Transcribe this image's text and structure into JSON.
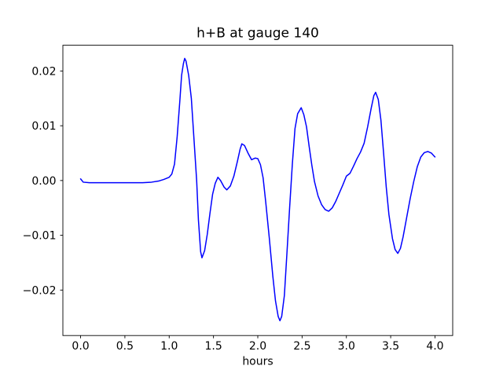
{
  "figure": {
    "background": "#ffffff"
  },
  "chart_data": {
    "type": "line",
    "title": "h+B at gauge 140",
    "xlabel": "hours",
    "ylabel": "",
    "grid": false,
    "legend": "none",
    "line_color": "#0000ff",
    "axis_color": "#000000",
    "xlim": [
      -0.2,
      4.2
    ],
    "ylim": [
      -0.0283,
      0.0247
    ],
    "xticks": {
      "values": [
        0.0,
        0.5,
        1.0,
        1.5,
        2.0,
        2.5,
        3.0,
        3.5,
        4.0
      ],
      "labels": [
        "0.0",
        "0.5",
        "1.0",
        "1.5",
        "2.0",
        "2.5",
        "3.0",
        "3.5",
        "4.0"
      ]
    },
    "yticks": {
      "values": [
        -0.02,
        -0.01,
        0.0,
        0.01,
        0.02
      ],
      "labels": [
        "−0.02",
        "−0.01",
        "0.00",
        "0.01",
        "0.02"
      ]
    },
    "series": [
      {
        "name": "h+B",
        "x": [
          0.0,
          0.03,
          0.1,
          0.2,
          0.3,
          0.4,
          0.5,
          0.6,
          0.7,
          0.8,
          0.88,
          0.94,
          1.0,
          1.03,
          1.06,
          1.09,
          1.12,
          1.14,
          1.16,
          1.175,
          1.19,
          1.22,
          1.25,
          1.28,
          1.31,
          1.33,
          1.355,
          1.37,
          1.4,
          1.43,
          1.46,
          1.49,
          1.52,
          1.55,
          1.58,
          1.62,
          1.65,
          1.69,
          1.73,
          1.77,
          1.8,
          1.82,
          1.85,
          1.89,
          1.93,
          1.97,
          2.0,
          2.03,
          2.06,
          2.09,
          2.13,
          2.17,
          2.2,
          2.23,
          2.25,
          2.27,
          2.3,
          2.33,
          2.36,
          2.39,
          2.42,
          2.45,
          2.49,
          2.52,
          2.55,
          2.58,
          2.61,
          2.64,
          2.68,
          2.72,
          2.76,
          2.8,
          2.84,
          2.88,
          2.92,
          2.96,
          3.0,
          3.04,
          3.08,
          3.12,
          3.16,
          3.2,
          3.24,
          3.28,
          3.31,
          3.33,
          3.36,
          3.39,
          3.42,
          3.45,
          3.48,
          3.52,
          3.55,
          3.58,
          3.61,
          3.64,
          3.68,
          3.72,
          3.76,
          3.8,
          3.84,
          3.88,
          3.92,
          3.96,
          4.0
        ],
        "y": [
          0.0003,
          -0.0003,
          -0.0004,
          -0.0004,
          -0.0004,
          -0.0004,
          -0.0004,
          -0.0004,
          -0.0004,
          -0.0003,
          -0.0001,
          0.0002,
          0.0006,
          0.0012,
          0.003,
          0.008,
          0.0145,
          0.0192,
          0.0213,
          0.0223,
          0.0218,
          0.0192,
          0.015,
          0.0075,
          0.0,
          -0.0072,
          -0.013,
          -0.0141,
          -0.0128,
          -0.0098,
          -0.006,
          -0.0025,
          -0.0005,
          0.0006,
          0.0,
          -0.0012,
          -0.0017,
          -0.001,
          0.0008,
          0.0035,
          0.0057,
          0.0067,
          0.0064,
          0.005,
          0.0038,
          0.0041,
          0.004,
          0.0029,
          0.0005,
          -0.004,
          -0.0105,
          -0.0175,
          -0.022,
          -0.0248,
          -0.0256,
          -0.0248,
          -0.021,
          -0.013,
          -0.0048,
          0.003,
          0.0095,
          0.0122,
          0.0133,
          0.012,
          0.0098,
          0.0062,
          0.0028,
          -0.0002,
          -0.0028,
          -0.0044,
          -0.0053,
          -0.0056,
          -0.005,
          -0.0038,
          -0.0023,
          -0.0008,
          0.0008,
          0.0013,
          0.0026,
          0.004,
          0.0052,
          0.0068,
          0.0098,
          0.0132,
          0.0155,
          0.0161,
          0.0148,
          0.011,
          0.005,
          -0.0012,
          -0.0062,
          -0.0106,
          -0.0126,
          -0.0133,
          -0.0124,
          -0.0103,
          -0.0068,
          -0.0033,
          -0.0002,
          0.0025,
          0.0043,
          0.0051,
          0.0053,
          0.005,
          0.0043
        ]
      }
    ]
  }
}
